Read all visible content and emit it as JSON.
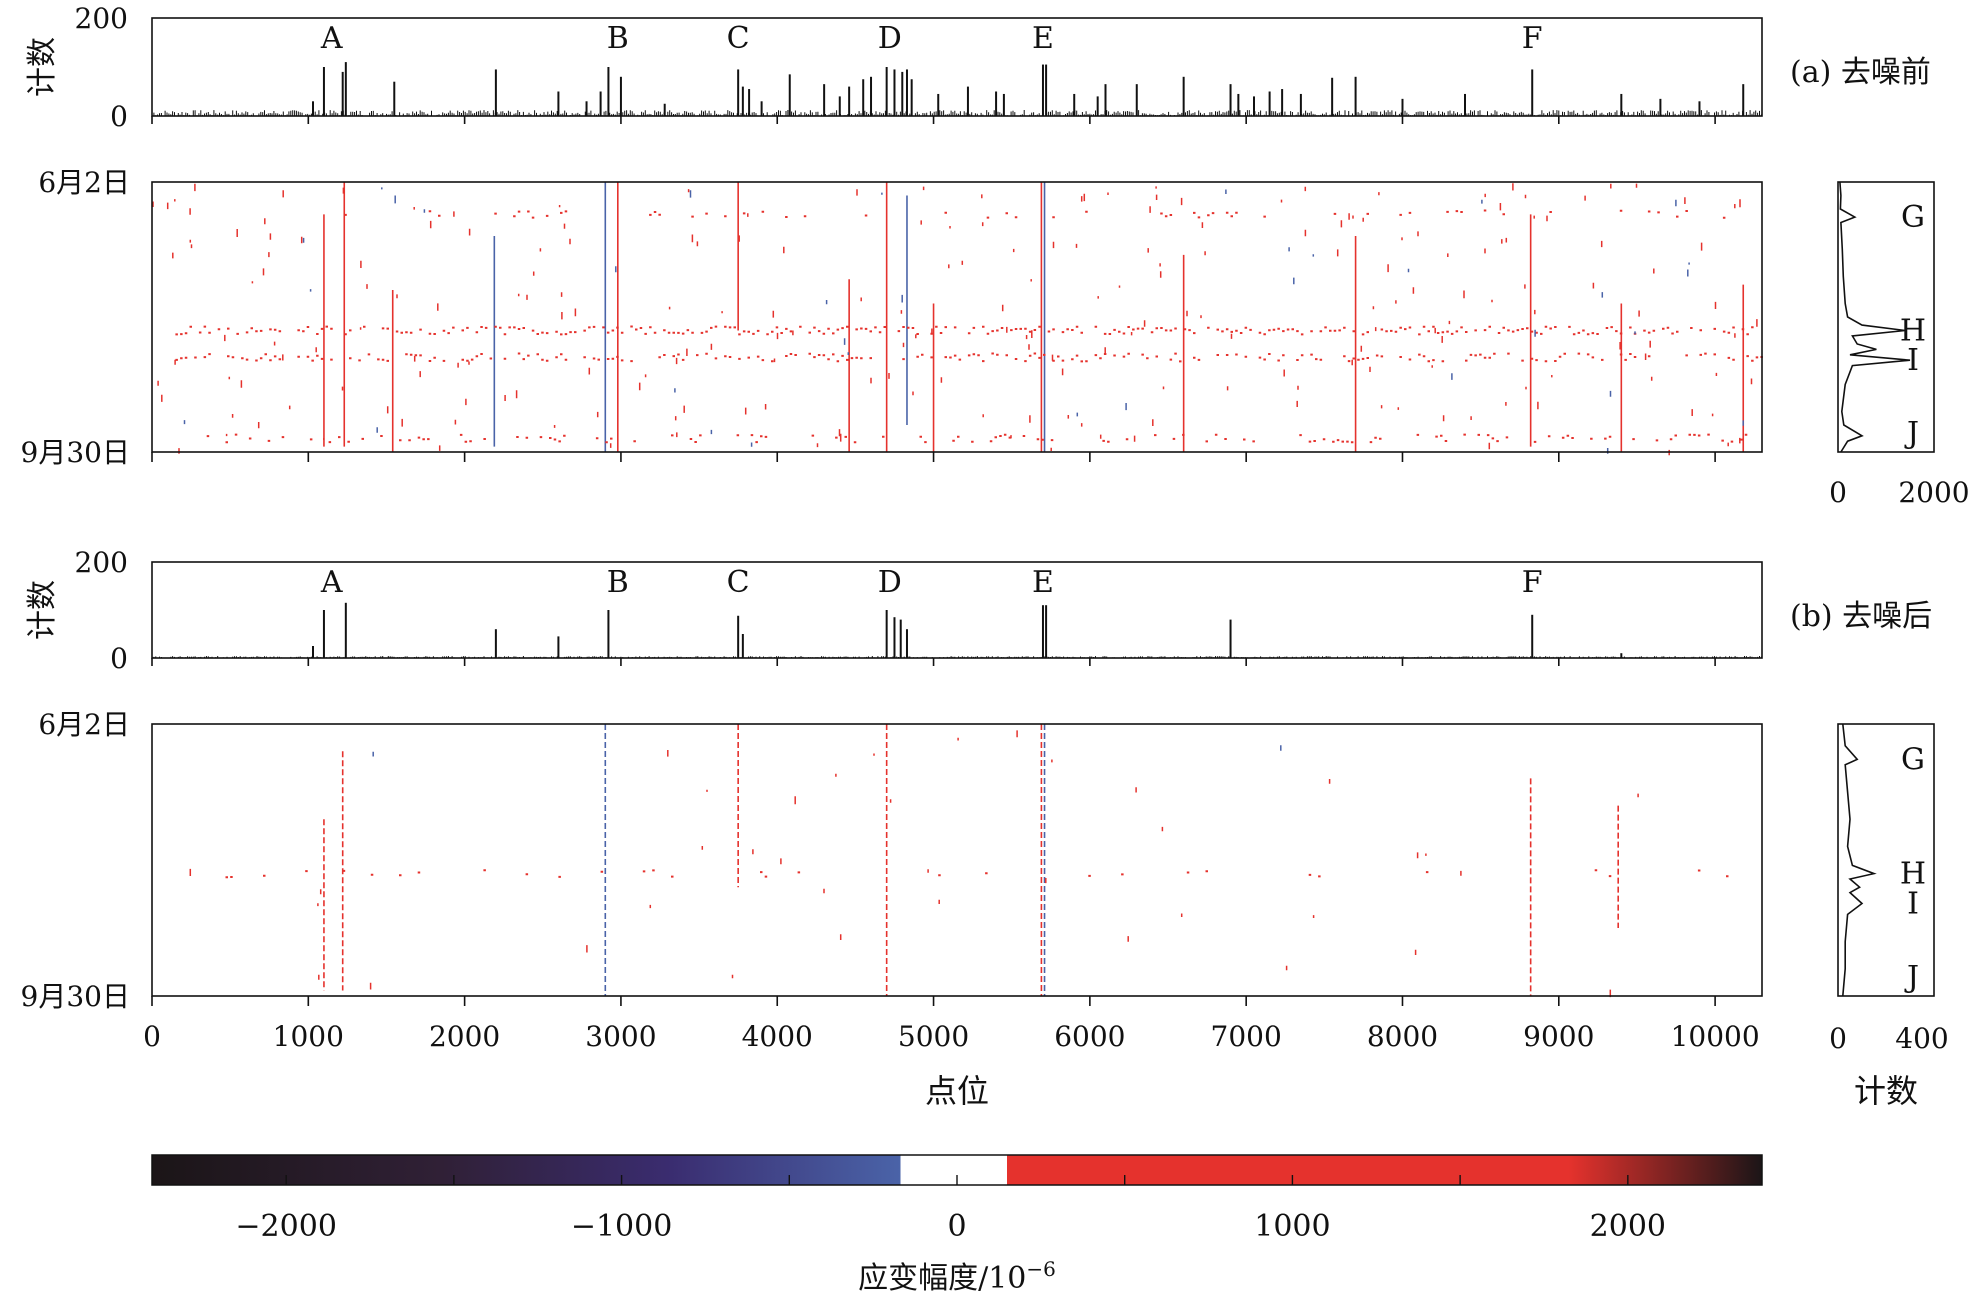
{
  "chart_data": {
    "type": "heatmap",
    "description_labels": {
      "panel_a_label": "(a) 去噪前",
      "panel_b_label": "(b) 去噪后"
    },
    "x_axis": {
      "label": "点位",
      "range": [
        0,
        10300
      ],
      "ticks": [
        0,
        1000,
        2000,
        3000,
        4000,
        5000,
        6000,
        7000,
        8000,
        9000,
        10000
      ]
    },
    "time_axis": {
      "start_label": "6月2日",
      "end_label": "9月30日"
    },
    "count_label": "计数",
    "side_count_label": "计数",
    "colorbar": {
      "label_main": "应变幅度/10",
      "label_exp": "−6",
      "range": [
        -2400,
        2400
      ],
      "ticks": [
        -2000,
        -1000,
        0,
        1000,
        2000
      ],
      "tick_labels": [
        "−2000",
        "−1000",
        "0",
        "1000",
        "2000"
      ],
      "white_band": [
        -170,
        150
      ],
      "colors": {
        "neg_dark": "#1b1517",
        "neg_mid": "#3a2c6f",
        "neg_light": "#4a63a8",
        "pos": "#e5322d",
        "pos_dark": "#1b1517"
      }
    },
    "peak_labels": [
      {
        "name": "A",
        "x": 1150
      },
      {
        "name": "B",
        "x": 2980
      },
      {
        "name": "C",
        "x": 3750
      },
      {
        "name": "D",
        "x": 4720
      },
      {
        "name": "E",
        "x": 5700
      },
      {
        "name": "F",
        "x": 8830
      }
    ],
    "time_peak_labels": [
      {
        "name": "G",
        "t": 0.13
      },
      {
        "name": "H",
        "t": 0.55
      },
      {
        "name": "I",
        "t": 0.66
      },
      {
        "name": "J",
        "t": 0.93
      }
    ],
    "panels": [
      {
        "id": "a",
        "top_count": {
          "ylim": [
            0,
            200
          ],
          "ytick_labels": [
            "0",
            "200"
          ],
          "spikes": [
            {
              "x": 1030,
              "v": 30
            },
            {
              "x": 1100,
              "v": 100
            },
            {
              "x": 1220,
              "v": 90
            },
            {
              "x": 1240,
              "v": 110
            },
            {
              "x": 1550,
              "v": 70
            },
            {
              "x": 2200,
              "v": 95
            },
            {
              "x": 2600,
              "v": 50
            },
            {
              "x": 2780,
              "v": 30
            },
            {
              "x": 2870,
              "v": 50
            },
            {
              "x": 2920,
              "v": 100
            },
            {
              "x": 3000,
              "v": 80
            },
            {
              "x": 3280,
              "v": 25
            },
            {
              "x": 3750,
              "v": 95
            },
            {
              "x": 3780,
              "v": 60
            },
            {
              "x": 3820,
              "v": 55
            },
            {
              "x": 3900,
              "v": 30
            },
            {
              "x": 4080,
              "v": 85
            },
            {
              "x": 4300,
              "v": 65
            },
            {
              "x": 4400,
              "v": 40
            },
            {
              "x": 4460,
              "v": 60
            },
            {
              "x": 4550,
              "v": 75
            },
            {
              "x": 4600,
              "v": 80
            },
            {
              "x": 4700,
              "v": 100
            },
            {
              "x": 4750,
              "v": 95
            },
            {
              "x": 4800,
              "v": 90
            },
            {
              "x": 4830,
              "v": 95
            },
            {
              "x": 4860,
              "v": 75
            },
            {
              "x": 5030,
              "v": 45
            },
            {
              "x": 5220,
              "v": 60
            },
            {
              "x": 5400,
              "v": 50
            },
            {
              "x": 5450,
              "v": 45
            },
            {
              "x": 5700,
              "v": 105
            },
            {
              "x": 5720,
              "v": 105
            },
            {
              "x": 5900,
              "v": 45
            },
            {
              "x": 6050,
              "v": 40
            },
            {
              "x": 6100,
              "v": 65
            },
            {
              "x": 6300,
              "v": 65
            },
            {
              "x": 6600,
              "v": 80
            },
            {
              "x": 6900,
              "v": 65
            },
            {
              "x": 6950,
              "v": 45
            },
            {
              "x": 7050,
              "v": 40
            },
            {
              "x": 7150,
              "v": 50
            },
            {
              "x": 7230,
              "v": 55
            },
            {
              "x": 7350,
              "v": 45
            },
            {
              "x": 7550,
              "v": 78
            },
            {
              "x": 7700,
              "v": 80
            },
            {
              "x": 8000,
              "v": 35
            },
            {
              "x": 8400,
              "v": 45
            },
            {
              "x": 8830,
              "v": 95
            },
            {
              "x": 9400,
              "v": 45
            },
            {
              "x": 9650,
              "v": 35
            },
            {
              "x": 9900,
              "v": 30
            },
            {
              "x": 10180,
              "v": 65
            }
          ]
        },
        "heat_columns": [
          {
            "x": 1100,
            "c": "#e5322d",
            "t0": 0.12,
            "t1": 0.98
          },
          {
            "x": 1230,
            "c": "#e5322d",
            "t0": 0.0,
            "t1": 0.98
          },
          {
            "x": 1540,
            "c": "#e5322d",
            "t0": 0.4,
            "t1": 1.0
          },
          {
            "x": 2190,
            "c": "#4a63a8",
            "t0": 0.2,
            "t1": 0.98
          },
          {
            "x": 2900,
            "c": "#4a63a8",
            "t0": 0.0,
            "t1": 1.0
          },
          {
            "x": 2980,
            "c": "#e5322d",
            "t0": 0.0,
            "t1": 1.0
          },
          {
            "x": 3750,
            "c": "#e5322d",
            "t0": 0.0,
            "t1": 0.55
          },
          {
            "x": 4460,
            "c": "#e5322d",
            "t0": 0.36,
            "t1": 1.0
          },
          {
            "x": 4700,
            "c": "#e5322d",
            "t0": 0.0,
            "t1": 1.0
          },
          {
            "x": 4830,
            "c": "#4a63a8",
            "t0": 0.05,
            "t1": 0.9
          },
          {
            "x": 5000,
            "c": "#e5322d",
            "t0": 0.45,
            "t1": 1.0
          },
          {
            "x": 5690,
            "c": "#e5322d",
            "t0": 0.0,
            "t1": 1.0
          },
          {
            "x": 5710,
            "c": "#4a63a8",
            "t0": 0.0,
            "t1": 1.0
          },
          {
            "x": 6600,
            "c": "#e5322d",
            "t0": 0.27,
            "t1": 1.0
          },
          {
            "x": 7700,
            "c": "#e5322d",
            "t0": 0.2,
            "t1": 1.0
          },
          {
            "x": 8820,
            "c": "#e5322d",
            "t0": 0.12,
            "t1": 0.98
          },
          {
            "x": 9400,
            "c": "#e5322d",
            "t0": 0.45,
            "t1": 1.0
          },
          {
            "x": 10180,
            "c": "#e5322d",
            "t0": 0.38,
            "t1": 1.0
          }
        ],
        "heat_rows": [
          {
            "t": 0.55,
            "x0": 150,
            "x1": 10300,
            "density": 0.75
          },
          {
            "t": 0.65,
            "x0": 150,
            "x1": 10300,
            "density": 0.55
          },
          {
            "t": 0.95,
            "x0": 200,
            "x1": 10200,
            "density": 0.35
          },
          {
            "t": 0.12,
            "x0": 900,
            "x1": 10100,
            "density": 0.2
          }
        ],
        "side_count": {
          "xlim": [
            0,
            2000
          ],
          "xtick_labels": [
            "0",
            "2000"
          ],
          "profile": [
            {
              "t": 0.0,
              "v": 40
            },
            {
              "t": 0.05,
              "v": 60
            },
            {
              "t": 0.1,
              "v": 50
            },
            {
              "t": 0.13,
              "v": 350
            },
            {
              "t": 0.15,
              "v": 60
            },
            {
              "t": 0.25,
              "v": 90
            },
            {
              "t": 0.35,
              "v": 110
            },
            {
              "t": 0.45,
              "v": 150
            },
            {
              "t": 0.5,
              "v": 200
            },
            {
              "t": 0.53,
              "v": 500
            },
            {
              "t": 0.55,
              "v": 1400
            },
            {
              "t": 0.57,
              "v": 300
            },
            {
              "t": 0.6,
              "v": 400
            },
            {
              "t": 0.62,
              "v": 800
            },
            {
              "t": 0.64,
              "v": 250
            },
            {
              "t": 0.66,
              "v": 1500
            },
            {
              "t": 0.68,
              "v": 300
            },
            {
              "t": 0.75,
              "v": 150
            },
            {
              "t": 0.85,
              "v": 80
            },
            {
              "t": 0.9,
              "v": 120
            },
            {
              "t": 0.94,
              "v": 500
            },
            {
              "t": 0.96,
              "v": 200
            },
            {
              "t": 1.0,
              "v": 60
            }
          ]
        }
      },
      {
        "id": "b",
        "top_count": {
          "ylim": [
            0,
            200
          ],
          "ytick_labels": [
            "0",
            "200"
          ],
          "spikes": [
            {
              "x": 1030,
              "v": 25
            },
            {
              "x": 1100,
              "v": 100
            },
            {
              "x": 1240,
              "v": 115
            },
            {
              "x": 2200,
              "v": 60
            },
            {
              "x": 2600,
              "v": 45
            },
            {
              "x": 2920,
              "v": 100
            },
            {
              "x": 3750,
              "v": 88
            },
            {
              "x": 3780,
              "v": 50
            },
            {
              "x": 4700,
              "v": 100
            },
            {
              "x": 4750,
              "v": 85
            },
            {
              "x": 4790,
              "v": 80
            },
            {
              "x": 4830,
              "v": 60
            },
            {
              "x": 5700,
              "v": 110
            },
            {
              "x": 5720,
              "v": 110
            },
            {
              "x": 6900,
              "v": 80
            },
            {
              "x": 8830,
              "v": 90
            },
            {
              "x": 9400,
              "v": 10
            }
          ]
        },
        "heat_columns": [
          {
            "x": 1100,
            "c": "#e5322d",
            "t0": 0.35,
            "t1": 0.98
          },
          {
            "x": 1220,
            "c": "#e5322d",
            "t0": 0.1,
            "t1": 0.98
          },
          {
            "x": 2900,
            "c": "#4a63a8",
            "t0": 0.0,
            "t1": 1.0
          },
          {
            "x": 3750,
            "c": "#e5322d",
            "t0": 0.0,
            "t1": 0.6
          },
          {
            "x": 4700,
            "c": "#e5322d",
            "t0": 0.0,
            "t1": 1.0
          },
          {
            "x": 5690,
            "c": "#e5322d",
            "t0": 0.0,
            "t1": 1.0
          },
          {
            "x": 5710,
            "c": "#4a63a8",
            "t0": 0.0,
            "t1": 1.0
          },
          {
            "x": 8820,
            "c": "#e5322d",
            "t0": 0.2,
            "t1": 1.0
          },
          {
            "x": 9380,
            "c": "#e5322d",
            "t0": 0.3,
            "t1": 0.75
          }
        ],
        "heat_rows": [
          {
            "t": 0.55,
            "x0": 200,
            "x1": 10200,
            "density": 0.08
          }
        ],
        "side_count": {
          "xlim": [
            0,
            400
          ],
          "xtick_labels": [
            "0",
            "400"
          ],
          "profile": [
            {
              "t": 0.0,
              "v": 20
            },
            {
              "t": 0.08,
              "v": 30
            },
            {
              "t": 0.13,
              "v": 80
            },
            {
              "t": 0.15,
              "v": 30
            },
            {
              "t": 0.25,
              "v": 40
            },
            {
              "t": 0.35,
              "v": 50
            },
            {
              "t": 0.45,
              "v": 40
            },
            {
              "t": 0.52,
              "v": 60
            },
            {
              "t": 0.55,
              "v": 150
            },
            {
              "t": 0.57,
              "v": 50
            },
            {
              "t": 0.6,
              "v": 90
            },
            {
              "t": 0.62,
              "v": 50
            },
            {
              "t": 0.66,
              "v": 100
            },
            {
              "t": 0.7,
              "v": 40
            },
            {
              "t": 0.8,
              "v": 30
            },
            {
              "t": 0.9,
              "v": 30
            },
            {
              "t": 1.0,
              "v": 20
            }
          ]
        }
      }
    ]
  }
}
